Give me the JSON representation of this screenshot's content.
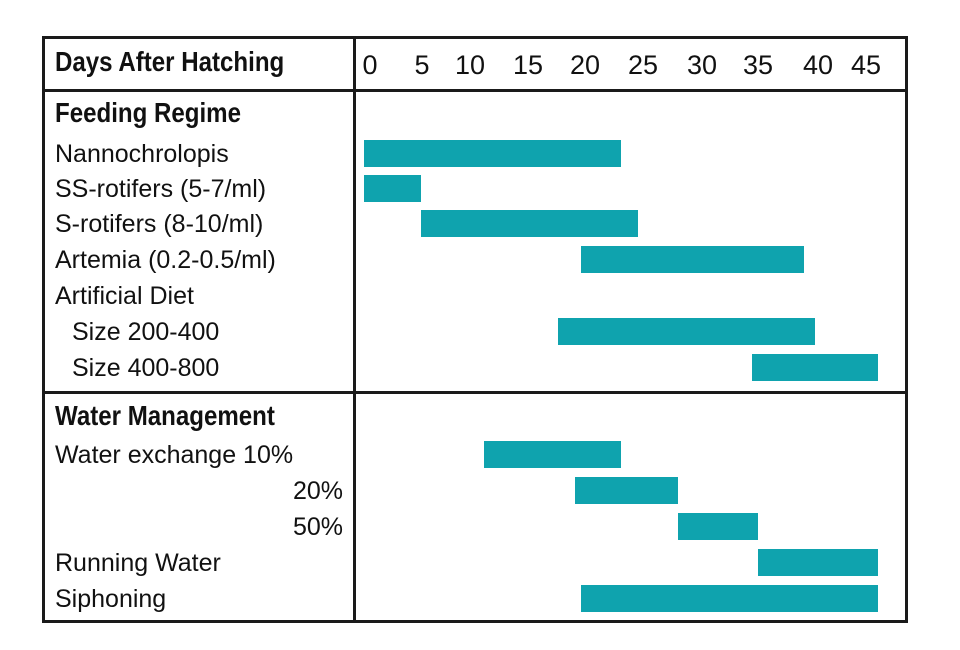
{
  "chart_data": {
    "type": "gantt",
    "x_header": "Days After Hatching",
    "x_ticks": [
      "0",
      "5",
      "10",
      "15",
      "20",
      "25",
      "30",
      "35",
      "40",
      "45"
    ],
    "xlim": [
      0,
      45
    ],
    "bar_color": "#0fa3ae",
    "sections": [
      {
        "title": "Feeding Regime",
        "rows": [
          {
            "label": "Nannochrolopis",
            "start": 0,
            "end": 22.5
          },
          {
            "label": "SS-rotifers (5-7/ml)",
            "start": 0,
            "end": 5
          },
          {
            "label": "S-rotifers (8-10/ml)",
            "start": 5,
            "end": 24
          },
          {
            "label": "Artemia (0.2-0.5/ml)",
            "start": 19,
            "end": 38.5
          },
          {
            "label": "Artificial Diet",
            "start": null,
            "end": null
          },
          {
            "label": "Size 200-400",
            "start": 17,
            "end": 39.5
          },
          {
            "label": "Size 400-800",
            "start": 34,
            "end": 45
          }
        ]
      },
      {
        "title": "Water Management",
        "rows": [
          {
            "label": "Water exchange 10%",
            "start": 10.5,
            "end": 22.5
          },
          {
            "label": "20%",
            "start": 18.5,
            "end": 27.5
          },
          {
            "label": "50%",
            "start": 27.5,
            "end": 34.5
          },
          {
            "label": "Running Water",
            "start": 34.5,
            "end": 45
          },
          {
            "label": "Siphoning",
            "start": 19,
            "end": 45
          }
        ]
      }
    ]
  }
}
